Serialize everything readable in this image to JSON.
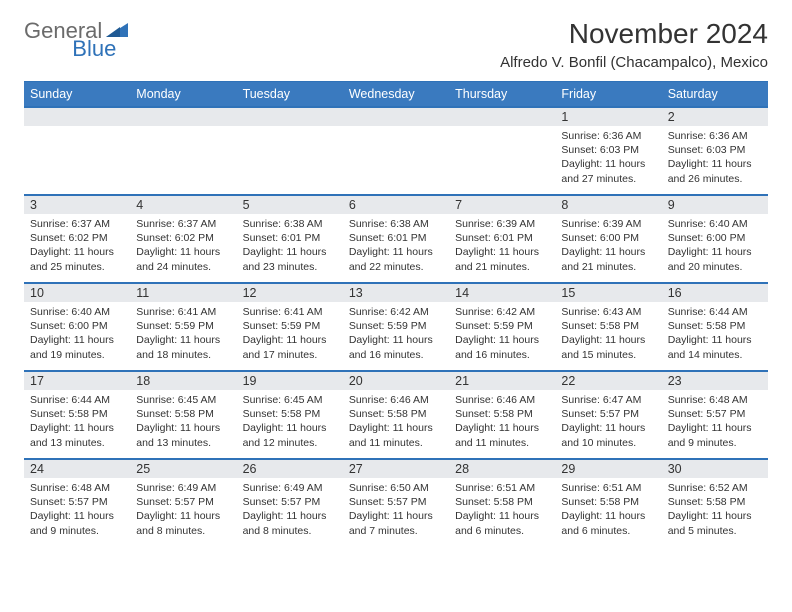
{
  "logo": {
    "general": "General",
    "blue": "Blue"
  },
  "title": "November 2024",
  "location": "Alfredo V. Bonfil (Chacampalco), Mexico",
  "colors": {
    "header_bg": "#3a7abf",
    "row_border": "#2f72b8",
    "daynum_bg": "#e7e9ec",
    "text": "#333333",
    "logo_gray": "#6b6b6b",
    "logo_blue": "#2f72b8"
  },
  "day_headers": [
    "Sunday",
    "Monday",
    "Tuesday",
    "Wednesday",
    "Thursday",
    "Friday",
    "Saturday"
  ],
  "weeks": [
    [
      null,
      null,
      null,
      null,
      null,
      {
        "n": "1",
        "sunrise": "6:36 AM",
        "sunset": "6:03 PM",
        "dl": "11 hours and 27 minutes."
      },
      {
        "n": "2",
        "sunrise": "6:36 AM",
        "sunset": "6:03 PM",
        "dl": "11 hours and 26 minutes."
      }
    ],
    [
      {
        "n": "3",
        "sunrise": "6:37 AM",
        "sunset": "6:02 PM",
        "dl": "11 hours and 25 minutes."
      },
      {
        "n": "4",
        "sunrise": "6:37 AM",
        "sunset": "6:02 PM",
        "dl": "11 hours and 24 minutes."
      },
      {
        "n": "5",
        "sunrise": "6:38 AM",
        "sunset": "6:01 PM",
        "dl": "11 hours and 23 minutes."
      },
      {
        "n": "6",
        "sunrise": "6:38 AM",
        "sunset": "6:01 PM",
        "dl": "11 hours and 22 minutes."
      },
      {
        "n": "7",
        "sunrise": "6:39 AM",
        "sunset": "6:01 PM",
        "dl": "11 hours and 21 minutes."
      },
      {
        "n": "8",
        "sunrise": "6:39 AM",
        "sunset": "6:00 PM",
        "dl": "11 hours and 21 minutes."
      },
      {
        "n": "9",
        "sunrise": "6:40 AM",
        "sunset": "6:00 PM",
        "dl": "11 hours and 20 minutes."
      }
    ],
    [
      {
        "n": "10",
        "sunrise": "6:40 AM",
        "sunset": "6:00 PM",
        "dl": "11 hours and 19 minutes."
      },
      {
        "n": "11",
        "sunrise": "6:41 AM",
        "sunset": "5:59 PM",
        "dl": "11 hours and 18 minutes."
      },
      {
        "n": "12",
        "sunrise": "6:41 AM",
        "sunset": "5:59 PM",
        "dl": "11 hours and 17 minutes."
      },
      {
        "n": "13",
        "sunrise": "6:42 AM",
        "sunset": "5:59 PM",
        "dl": "11 hours and 16 minutes."
      },
      {
        "n": "14",
        "sunrise": "6:42 AM",
        "sunset": "5:59 PM",
        "dl": "11 hours and 16 minutes."
      },
      {
        "n": "15",
        "sunrise": "6:43 AM",
        "sunset": "5:58 PM",
        "dl": "11 hours and 15 minutes."
      },
      {
        "n": "16",
        "sunrise": "6:44 AM",
        "sunset": "5:58 PM",
        "dl": "11 hours and 14 minutes."
      }
    ],
    [
      {
        "n": "17",
        "sunrise": "6:44 AM",
        "sunset": "5:58 PM",
        "dl": "11 hours and 13 minutes."
      },
      {
        "n": "18",
        "sunrise": "6:45 AM",
        "sunset": "5:58 PM",
        "dl": "11 hours and 13 minutes."
      },
      {
        "n": "19",
        "sunrise": "6:45 AM",
        "sunset": "5:58 PM",
        "dl": "11 hours and 12 minutes."
      },
      {
        "n": "20",
        "sunrise": "6:46 AM",
        "sunset": "5:58 PM",
        "dl": "11 hours and 11 minutes."
      },
      {
        "n": "21",
        "sunrise": "6:46 AM",
        "sunset": "5:58 PM",
        "dl": "11 hours and 11 minutes."
      },
      {
        "n": "22",
        "sunrise": "6:47 AM",
        "sunset": "5:57 PM",
        "dl": "11 hours and 10 minutes."
      },
      {
        "n": "23",
        "sunrise": "6:48 AM",
        "sunset": "5:57 PM",
        "dl": "11 hours and 9 minutes."
      }
    ],
    [
      {
        "n": "24",
        "sunrise": "6:48 AM",
        "sunset": "5:57 PM",
        "dl": "11 hours and 9 minutes."
      },
      {
        "n": "25",
        "sunrise": "6:49 AM",
        "sunset": "5:57 PM",
        "dl": "11 hours and 8 minutes."
      },
      {
        "n": "26",
        "sunrise": "6:49 AM",
        "sunset": "5:57 PM",
        "dl": "11 hours and 8 minutes."
      },
      {
        "n": "27",
        "sunrise": "6:50 AM",
        "sunset": "5:57 PM",
        "dl": "11 hours and 7 minutes."
      },
      {
        "n": "28",
        "sunrise": "6:51 AM",
        "sunset": "5:58 PM",
        "dl": "11 hours and 6 minutes."
      },
      {
        "n": "29",
        "sunrise": "6:51 AM",
        "sunset": "5:58 PM",
        "dl": "11 hours and 6 minutes."
      },
      {
        "n": "30",
        "sunrise": "6:52 AM",
        "sunset": "5:58 PM",
        "dl": "11 hours and 5 minutes."
      }
    ]
  ],
  "labels": {
    "sunrise_prefix": "Sunrise: ",
    "sunset_prefix": "Sunset: ",
    "daylight_prefix": "Daylight: "
  }
}
